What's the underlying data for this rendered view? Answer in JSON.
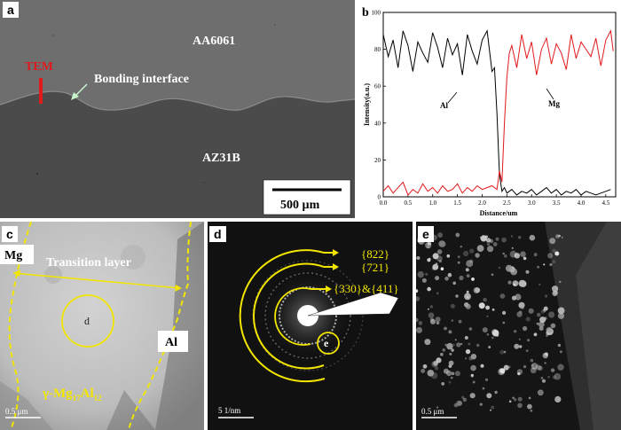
{
  "panels": {
    "a": {
      "label": "a",
      "texts": {
        "top_alloy": "AA6061",
        "bottom_alloy": "AZ31B",
        "tem": "TEM",
        "interface": "Bonding interface",
        "scalebar": "500 µm"
      }
    },
    "b": {
      "label": "b"
    },
    "c": {
      "label": "c",
      "texts": {
        "mg": "Mg",
        "al": "Al",
        "transition": "Transition layer",
        "circle_label": "d",
        "phase_prefix": "γ-Mg",
        "phase_sub1": "17",
        "phase_mid": "Al",
        "phase_sub2": "12",
        "scale": "0.5 μm"
      }
    },
    "d": {
      "label": "d",
      "texts": {
        "ring1": "{822}",
        "ring2": "{721}",
        "ring3": "{330}&{411}",
        "spot": "e",
        "scale": "5 1/nm"
      }
    },
    "e": {
      "label": "e",
      "texts": {
        "scale": "0.5 μm"
      }
    }
  },
  "chart_data": {
    "type": "line",
    "xlabel": "Distance/um",
    "ylabel": "Intensity(a.u.)",
    "xlim": [
      0,
      4.7
    ],
    "ylim": [
      0,
      100
    ],
    "xticks": [
      0.0,
      0.5,
      1.0,
      1.5,
      2.0,
      2.5,
      3.0,
      3.5,
      4.0,
      4.5
    ],
    "yticks": [
      0,
      20,
      40,
      60,
      80,
      100
    ],
    "series": [
      {
        "name": "Al",
        "color": "#000000",
        "x": [
          0.0,
          0.1,
          0.2,
          0.3,
          0.4,
          0.5,
          0.6,
          0.7,
          0.8,
          0.9,
          1.0,
          1.1,
          1.2,
          1.3,
          1.4,
          1.5,
          1.6,
          1.7,
          1.8,
          1.9,
          2.0,
          2.1,
          2.2,
          2.25,
          2.3,
          2.35,
          2.4,
          2.45,
          2.5,
          2.6,
          2.7,
          2.8,
          2.9,
          3.0,
          3.1,
          3.2,
          3.3,
          3.4,
          3.5,
          3.6,
          3.7,
          3.8,
          3.9,
          4.0,
          4.1,
          4.2,
          4.3,
          4.4,
          4.5,
          4.6
        ],
        "y": [
          88,
          76,
          85,
          70,
          90,
          82,
          68,
          84,
          78,
          73,
          89,
          81,
          70,
          86,
          77,
          83,
          66,
          88,
          79,
          72,
          85,
          90,
          68,
          70,
          45,
          12,
          3,
          5,
          2,
          4,
          1,
          3,
          2,
          4,
          1,
          3,
          5,
          2,
          4,
          1,
          3,
          2,
          4,
          1,
          3,
          2,
          1,
          2,
          3,
          4
        ]
      },
      {
        "name": "Mg",
        "color": "#e0191b",
        "x": [
          0.0,
          0.1,
          0.2,
          0.3,
          0.4,
          0.5,
          0.6,
          0.7,
          0.8,
          0.9,
          1.0,
          1.1,
          1.2,
          1.3,
          1.4,
          1.5,
          1.6,
          1.7,
          1.8,
          1.9,
          2.0,
          2.1,
          2.2,
          2.3,
          2.35,
          2.4,
          2.45,
          2.5,
          2.55,
          2.6,
          2.7,
          2.8,
          2.9,
          3.0,
          3.1,
          3.2,
          3.3,
          3.4,
          3.5,
          3.6,
          3.7,
          3.8,
          3.9,
          4.0,
          4.1,
          4.2,
          4.3,
          4.4,
          4.5,
          4.6,
          4.65
        ],
        "y": [
          3,
          6,
          2,
          5,
          8,
          1,
          4,
          2,
          7,
          3,
          5,
          2,
          6,
          3,
          4,
          7,
          2,
          5,
          3,
          6,
          4,
          5,
          6,
          4,
          14,
          8,
          40,
          65,
          78,
          82,
          70,
          88,
          75,
          84,
          66,
          80,
          86,
          72,
          83,
          78,
          69,
          88,
          75,
          84,
          80,
          76,
          86,
          71,
          85,
          90,
          79
        ]
      }
    ],
    "annotations": [
      "Al",
      "Mg"
    ]
  }
}
